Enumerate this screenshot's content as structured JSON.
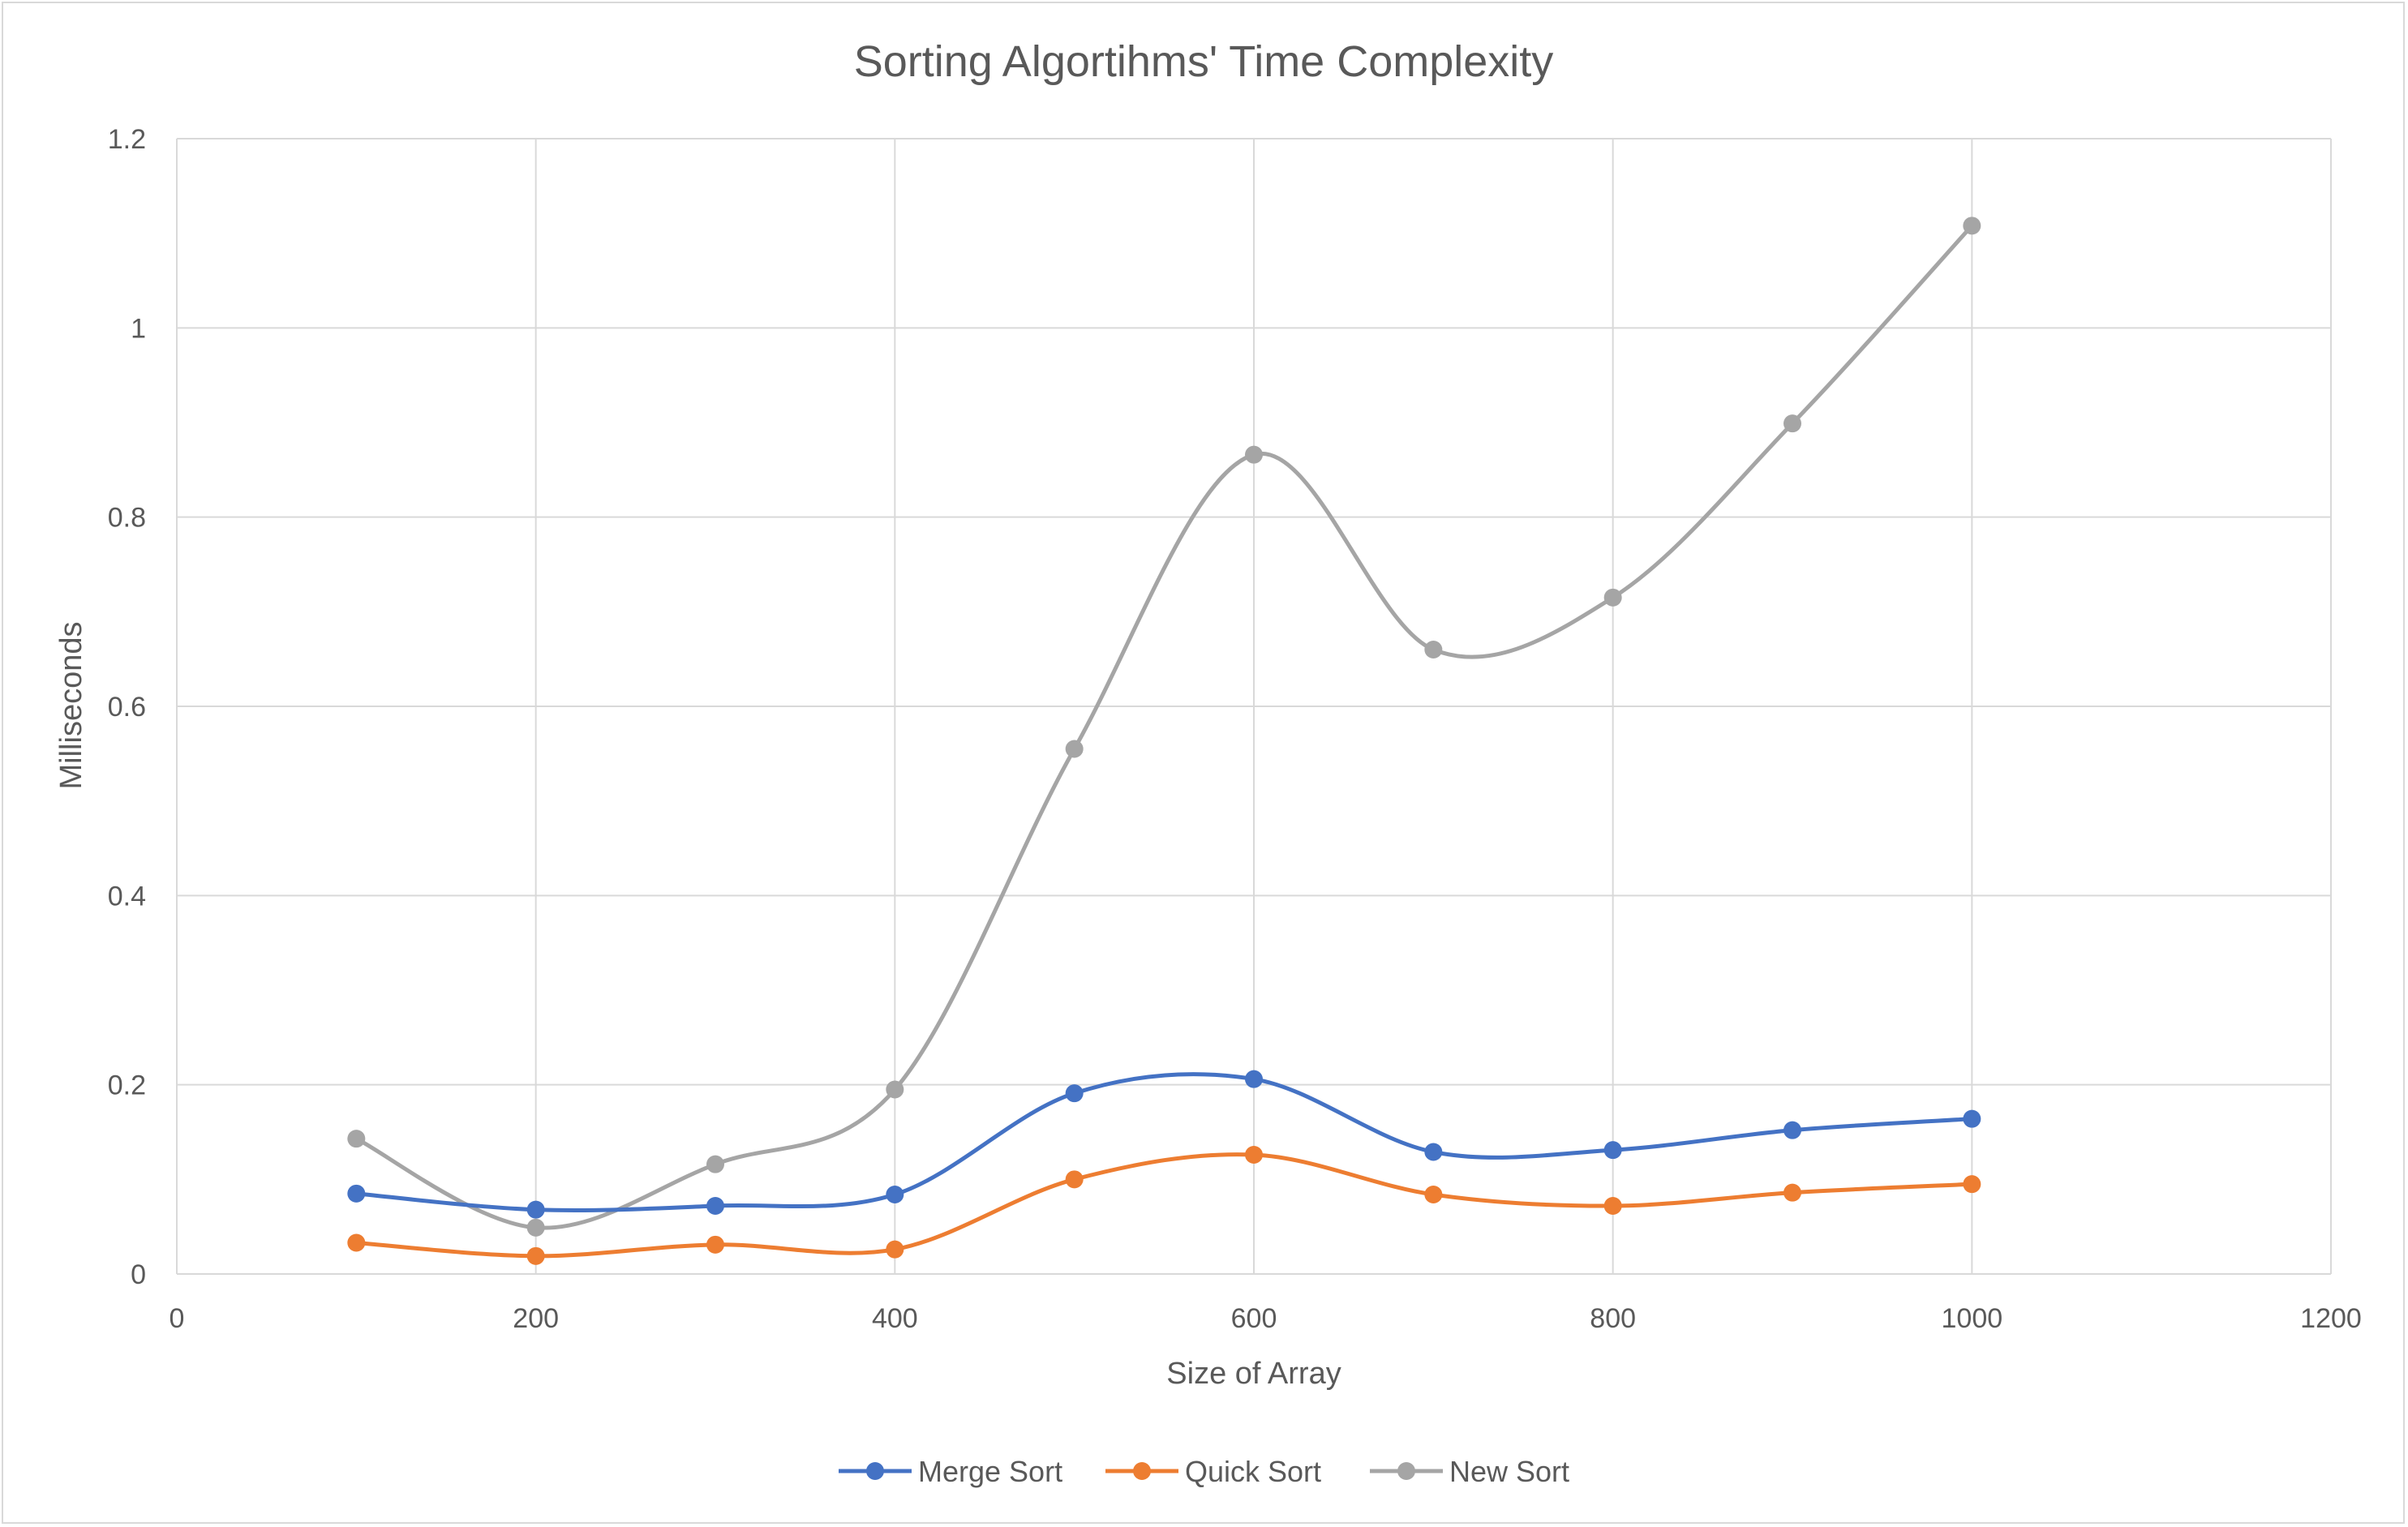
{
  "chart_data": {
    "type": "line",
    "smooth": true,
    "markers": true,
    "title": "Sorting Algortihms' Time Complexity",
    "xlabel": "Size of Array",
    "ylabel": "Milliseconds",
    "xlim": [
      0,
      1200
    ],
    "ylim": [
      0,
      1.2
    ],
    "x_ticks": [
      0,
      200,
      400,
      600,
      800,
      1000,
      1200
    ],
    "y_ticks": [
      0,
      0.2,
      0.4,
      0.6,
      0.8,
      1,
      1.2
    ],
    "x_tick_labels": [
      "0",
      "200",
      "400",
      "600",
      "800",
      "1000",
      "1200"
    ],
    "y_tick_labels": [
      "0",
      "0.2",
      "0.4",
      "0.6",
      "0.8",
      "1",
      "1.2"
    ],
    "grid": true,
    "legend_position": "bottom",
    "x": [
      100,
      200,
      300,
      400,
      500,
      600,
      700,
      800,
      900,
      1000
    ],
    "series": [
      {
        "name": "Merge Sort",
        "color": "#4472c4",
        "values": [
          0.085,
          0.068,
          0.072,
          0.084,
          0.191,
          0.206,
          0.129,
          0.131,
          0.152,
          0.164
        ]
      },
      {
        "name": "Quick Sort",
        "color": "#ed7d31",
        "values": [
          0.033,
          0.019,
          0.031,
          0.026,
          0.1,
          0.126,
          0.084,
          0.072,
          0.086,
          0.095
        ]
      },
      {
        "name": "New Sort",
        "color": "#a5a5a5",
        "values": [
          0.143,
          0.049,
          0.116,
          0.195,
          0.555,
          0.866,
          0.66,
          0.715,
          0.899,
          1.108
        ]
      }
    ]
  }
}
